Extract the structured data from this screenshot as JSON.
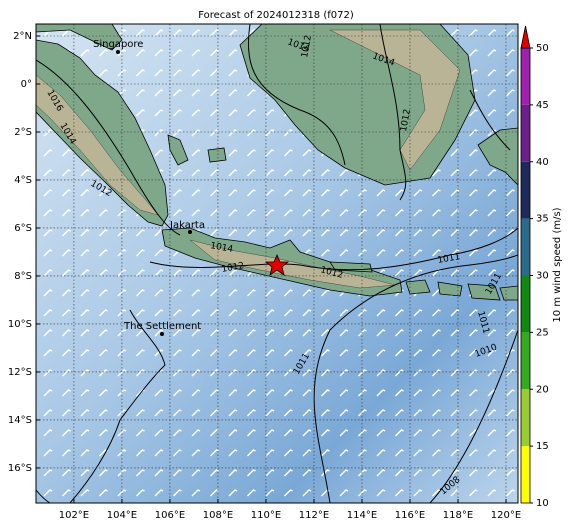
{
  "title": "Forecast of 2024012318 (f072)",
  "map": {
    "lon_range": [
      100.42,
      120.5
    ],
    "lat_range": [
      2.5,
      -17.46
    ],
    "lon_ticks": [
      {
        "value": 102,
        "label": "102°E"
      },
      {
        "value": 104,
        "label": "104°E"
      },
      {
        "value": 106,
        "label": "106°E"
      },
      {
        "value": 108,
        "label": "108°E"
      },
      {
        "value": 110,
        "label": "110°E"
      },
      {
        "value": 112,
        "label": "112°E"
      },
      {
        "value": 114,
        "label": "114°E"
      },
      {
        "value": 116,
        "label": "116°E"
      },
      {
        "value": 118,
        "label": "118°E"
      },
      {
        "value": 120,
        "label": "120°E"
      }
    ],
    "lat_ticks": [
      {
        "value": 2,
        "label": "2°N"
      },
      {
        "value": 0,
        "label": "0°"
      },
      {
        "value": -2,
        "label": "2°S"
      },
      {
        "value": -4,
        "label": "4°S"
      },
      {
        "value": -6,
        "label": "6°S"
      },
      {
        "value": -8,
        "label": "8°S"
      },
      {
        "value": -10,
        "label": "10°S"
      },
      {
        "value": -12,
        "label": "12°S"
      },
      {
        "value": -14,
        "label": "14°S"
      },
      {
        "value": -16,
        "label": "16°S"
      }
    ]
  },
  "places": [
    "Singapore",
    "Jakarta",
    "The Settlement"
  ],
  "isobar_labels": [
    "1016",
    "1014",
    "1012",
    "1014",
    "1012",
    "1014",
    "1012",
    "1011",
    "1012",
    "1011",
    "1010",
    "1011",
    "1008",
    "1014",
    "1012",
    "1011"
  ],
  "colorbar": {
    "label": "10 m wind speed (m/s)",
    "lim": [
      10,
      50
    ],
    "ticks": [
      10,
      15,
      20,
      25,
      30,
      35,
      40,
      45,
      50
    ],
    "colors": [
      "#ffff00",
      "#99cc33",
      "#33aa22",
      "#118811",
      "#2a6a8a",
      "#1e2a5a",
      "#6a1f8a",
      "#a020b0"
    ],
    "extend_color": "#e00000"
  }
}
